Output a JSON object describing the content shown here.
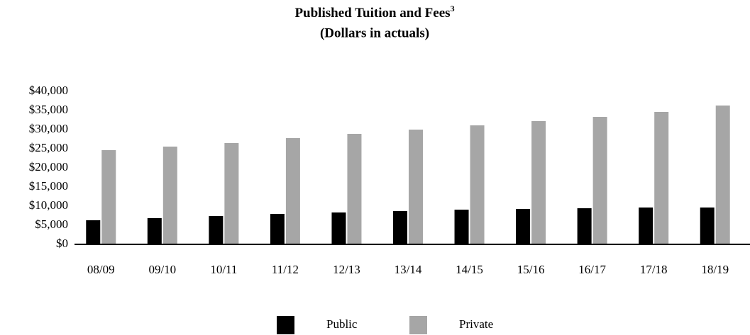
{
  "chart_data": {
    "type": "bar",
    "title": "Published Tuition and Fees",
    "title_footnote": "3",
    "subtitle": "(Dollars in actuals)",
    "categories": [
      "08/09",
      "09/10",
      "10/11",
      "11/12",
      "12/13",
      "13/14",
      "14/15",
      "15/16",
      "16/17",
      "17/18",
      "18/19"
    ],
    "series": [
      {
        "name": "Public",
        "color": "#000000",
        "values": [
          6300,
          6850,
          7400,
          7960,
          8330,
          8700,
          9070,
          9260,
          9440,
          9630,
          9630
        ]
      },
      {
        "name": "Private",
        "color": "#a6a6a6",
        "values": [
          24630,
          25560,
          26480,
          27780,
          28890,
          30000,
          31110,
          32220,
          33330,
          34630,
          36300
        ]
      }
    ],
    "ylim": [
      0,
      40000
    ],
    "yticks": [
      {
        "value": 0,
        "label": "$0"
      },
      {
        "value": 5000,
        "label": "$5,000"
      },
      {
        "value": 10000,
        "label": "$10,000"
      },
      {
        "value": 15000,
        "label": "$15,000"
      },
      {
        "value": 20000,
        "label": "$20,000"
      },
      {
        "value": 25000,
        "label": "$25,000"
      },
      {
        "value": 30000,
        "label": "$30,000"
      },
      {
        "value": 35000,
        "label": "$35,000"
      },
      {
        "value": 40000,
        "label": "$40,000"
      }
    ],
    "grid": false,
    "legend": "bottom"
  }
}
